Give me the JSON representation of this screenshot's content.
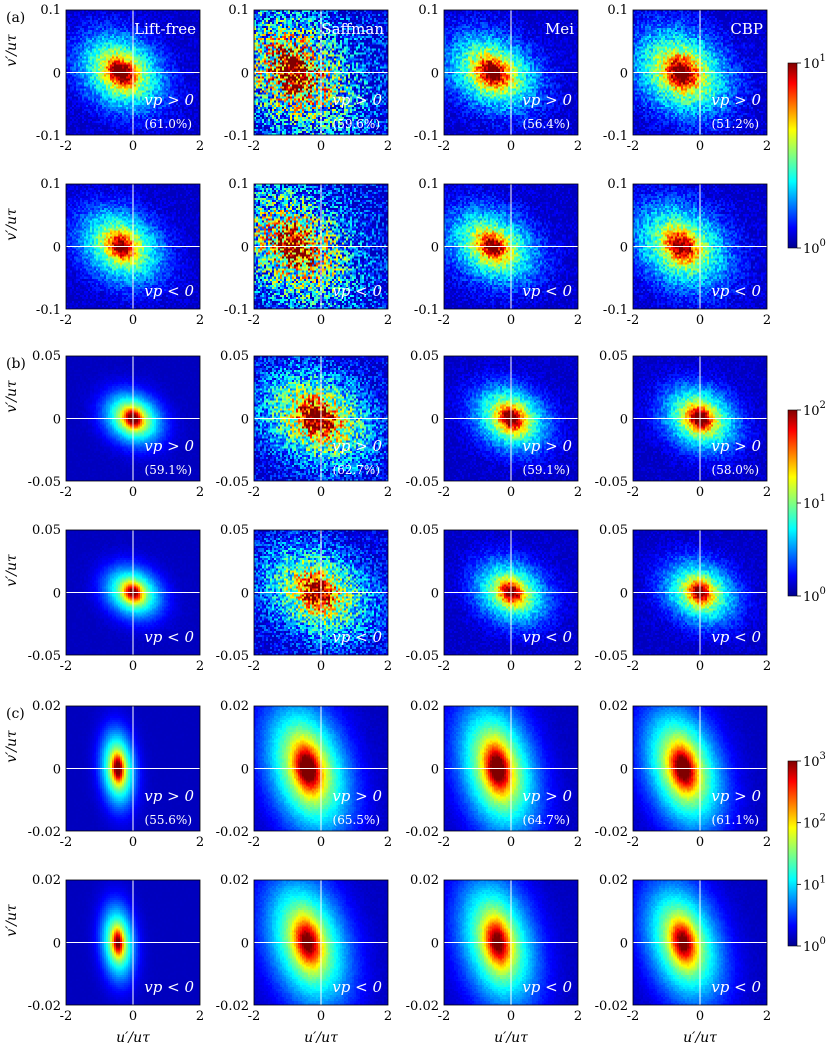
{
  "chart_data": {
    "type": "heatmap",
    "colormap": "jet",
    "column_titles": [
      "Lift-free",
      "Saffman",
      "Mei",
      "CBP"
    ],
    "xlabel": "u′/uτ",
    "ylabel": "v′/uτ",
    "xlim": [
      -2,
      2
    ],
    "xticks": [
      "-2",
      "0",
      "2"
    ],
    "annotation_pos": "vp > 0",
    "annotation_neg": "vp < 0",
    "panel_sets": [
      {
        "label": "(a)",
        "ylim": [
          -0.1,
          0.1
        ],
        "yticks": [
          "0.1",
          "0",
          "-0.1"
        ],
        "colorbar": {
          "scale": "log",
          "range": [
            1,
            10
          ],
          "ticks": [
            "10",
            "10"
          ],
          "exponents": [
            "0",
            "1"
          ]
        },
        "percentages_vp_pos": [
          "(61.0%)",
          "(59.6%)",
          "(56.4%)",
          "(51.2%)"
        ],
        "peak_u": [
          -0.35,
          -0.8,
          -0.55,
          -0.55
        ],
        "spread": [
          {
            "sx": 0.75,
            "sy": 0.035,
            "tilt": -0.012,
            "noise": 0.25
          },
          {
            "sx": 1.1,
            "sy": 0.055,
            "tilt": -0.015,
            "noise": 0.95
          },
          {
            "sx": 0.8,
            "sy": 0.035,
            "tilt": -0.012,
            "noise": 0.3
          },
          {
            "sx": 0.85,
            "sy": 0.04,
            "tilt": -0.012,
            "noise": 0.3
          }
        ]
      },
      {
        "label": "(b)",
        "ylim": [
          -0.05,
          0.05
        ],
        "yticks": [
          "0.05",
          "0",
          "-0.05"
        ],
        "colorbar": {
          "scale": "log",
          "range": [
            1,
            100
          ],
          "ticks": [
            "10",
            "10",
            "10"
          ],
          "exponents": [
            "0",
            "1",
            "2"
          ]
        },
        "percentages_vp_pos": [
          "(59.1%)",
          "(62.7%)",
          "(59.1%)",
          "(58.0%)"
        ],
        "peak_u": [
          0.0,
          -0.1,
          0.0,
          0.0
        ],
        "spread": [
          {
            "sx": 0.5,
            "sy": 0.012,
            "tilt": -0.005,
            "noise": 0.05
          },
          {
            "sx": 1.0,
            "sy": 0.022,
            "tilt": -0.006,
            "noise": 0.6
          },
          {
            "sx": 0.65,
            "sy": 0.015,
            "tilt": -0.005,
            "noise": 0.2
          },
          {
            "sx": 0.65,
            "sy": 0.015,
            "tilt": -0.005,
            "noise": 0.2
          }
        ]
      },
      {
        "label": "(c)",
        "ylim": [
          -0.02,
          0.02
        ],
        "yticks": [
          "0.02",
          "0",
          "-0.02"
        ],
        "colorbar": {
          "scale": "log",
          "range": [
            1,
            1000
          ],
          "ticks": [
            "10",
            "10",
            "10",
            "10"
          ],
          "exponents": [
            "0",
            "1",
            "2",
            "3"
          ]
        },
        "percentages_vp_pos": [
          "(55.6%)",
          "(65.5%)",
          "(64.7%)",
          "(61.1%)"
        ],
        "peak_u": [
          -0.45,
          -0.4,
          -0.4,
          -0.5
        ],
        "spread": [
          {
            "sx": 0.3,
            "sy": 0.007,
            "tilt": -0.003,
            "noise": 0.02
          },
          {
            "sx": 0.75,
            "sy": 0.012,
            "tilt": -0.005,
            "noise": 0.05
          },
          {
            "sx": 0.7,
            "sy": 0.012,
            "tilt": -0.005,
            "noise": 0.05
          },
          {
            "sx": 0.7,
            "sy": 0.011,
            "tilt": -0.005,
            "noise": 0.05
          }
        ]
      }
    ]
  }
}
